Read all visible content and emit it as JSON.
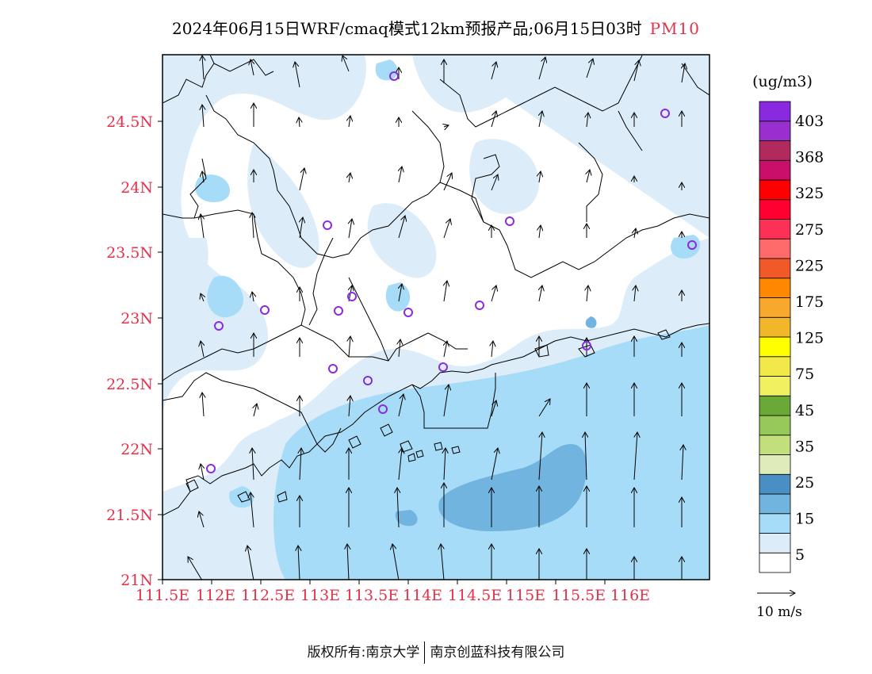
{
  "title": {
    "main": "2024年06月15日WRF/cmaq模式12km预报产品;06月15日03时",
    "species": "PM10"
  },
  "map": {
    "lat_ticks": [
      "24.5N",
      "24N",
      "23.5N",
      "23N",
      "22.5N",
      "22N",
      "21.5N",
      "21N"
    ],
    "lon_ticks": [
      "111.5E",
      "112E",
      "112.5E",
      "113E",
      "113.5E",
      "114E",
      "114.5E",
      "115E",
      "115.5E",
      "116E"
    ],
    "tick_color": "#e8304a",
    "station_color": "#8a2be2"
  },
  "legend": {
    "unit": "(ug/m3)",
    "labels": [
      "403",
      "368",
      "325",
      "275",
      "225",
      "175",
      "125",
      "75",
      "45",
      "35",
      "25",
      "15",
      "5"
    ],
    "colors": [
      "#ffffff",
      "#dcedf9",
      "#a6dcf7",
      "#72b4e0",
      "#4a8fc4",
      "#e0ebbc",
      "#c2df7b",
      "#96c95a",
      "#6aa838",
      "#f0f060",
      "#f2e84a",
      "#ffff00",
      "#f2b62a",
      "#f8a82c",
      "#ff8800",
      "#f15a28",
      "#ff6a6a",
      "#ff3055",
      "#ff0030",
      "#ff0000",
      "#c8106a",
      "#b02a5e",
      "#9a2fd0",
      "#8a2ae0"
    ]
  },
  "wind_reference": {
    "label": "10 m/s"
  },
  "footer": {
    "left": "版权所有:南京大学",
    "right": "南京创蓝科技有限公司"
  }
}
